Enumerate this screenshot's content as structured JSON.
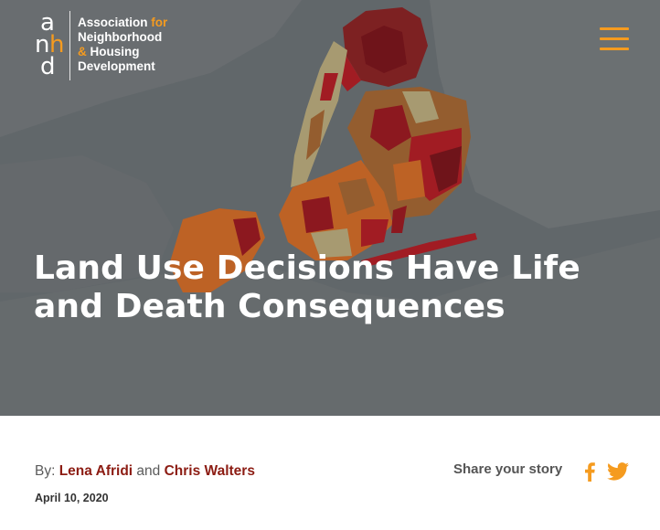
{
  "header": {
    "logo_letters": [
      "a",
      "n",
      "h",
      "d"
    ],
    "org_name": {
      "line1": "Association",
      "line1_accent": "for",
      "line2": "Neighborhood",
      "line3_accent": "&",
      "line3": "Housing",
      "line4": "Development"
    },
    "menu_icon": "hamburger-menu-icon"
  },
  "hero": {
    "title": "Land Use Decisions Have Life and Death Consequences"
  },
  "article_meta": {
    "by_label": "By:",
    "author1": "Lena Afridi",
    "and_label": "and",
    "author2": "Chris Walters",
    "date": "April 10, 2020"
  },
  "share": {
    "label": "Share your story",
    "icons": [
      "facebook-icon",
      "twitter-icon"
    ]
  },
  "colors": {
    "accent": "#f59b1f",
    "author_link": "#8c1c13",
    "hero_overlay": "#5f6467",
    "map_dark_red": "#7a0a10",
    "map_red": "#b8141b",
    "map_orange": "#d9691e",
    "map_brown": "#a8632a",
    "map_tan": "#bfae7a"
  }
}
